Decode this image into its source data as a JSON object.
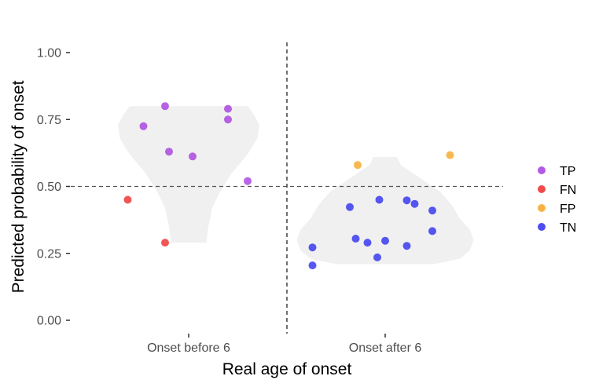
{
  "chart_data": {
    "type": "scatter",
    "subtype": "violin-with-jittered-points",
    "title": "",
    "xlabel": "Real age of onset",
    "ylabel": "Predicted probability of onset",
    "categories": [
      "Onset before 6",
      "Onset after 6"
    ],
    "ylim": [
      -0.05,
      1.05
    ],
    "yticks": [
      0.0,
      0.25,
      0.5,
      0.75,
      1.0
    ],
    "ytick_labels": [
      "0.00",
      "0.25",
      "0.50",
      "0.75",
      "1.00"
    ],
    "grid": false,
    "reference_lines": {
      "horizontal_y": 0.5,
      "vertical_between_categories": true
    },
    "legend": {
      "placement": "right",
      "entries": [
        {
          "label": "TP",
          "color": "#a63ddf"
        },
        {
          "label": "FN",
          "color": "#ee2c2c"
        },
        {
          "label": "FP",
          "color": "#f5a623"
        },
        {
          "label": "TN",
          "color": "#2e2ef0"
        }
      ]
    },
    "violin_color": "#f0f0f0",
    "violins": [
      {
        "category": "Onset before 6",
        "profile": [
          [
            0.29,
            0.09
          ],
          [
            0.35,
            0.1
          ],
          [
            0.42,
            0.12
          ],
          [
            0.48,
            0.16
          ],
          [
            0.55,
            0.22
          ],
          [
            0.62,
            0.3
          ],
          [
            0.68,
            0.35
          ],
          [
            0.73,
            0.36
          ],
          [
            0.77,
            0.33
          ],
          [
            0.8,
            0.3
          ]
        ]
      },
      {
        "category": "Onset after 6",
        "profile": [
          [
            0.21,
            0.25
          ],
          [
            0.23,
            0.38
          ],
          [
            0.26,
            0.43
          ],
          [
            0.3,
            0.45
          ],
          [
            0.34,
            0.43
          ],
          [
            0.38,
            0.38
          ],
          [
            0.43,
            0.34
          ],
          [
            0.48,
            0.28
          ],
          [
            0.53,
            0.18
          ],
          [
            0.58,
            0.08
          ],
          [
            0.61,
            0.06
          ]
        ]
      }
    ],
    "series": [
      {
        "name": "TP",
        "color": "#a63ddf",
        "points": [
          {
            "x": "Onset before 6",
            "jitter": -0.23,
            "y": 0.725
          },
          {
            "x": "Onset before 6",
            "jitter": -0.12,
            "y": 0.8
          },
          {
            "x": "Onset before 6",
            "jitter": -0.1,
            "y": 0.63
          },
          {
            "x": "Onset before 6",
            "jitter": 0.02,
            "y": 0.612
          },
          {
            "x": "Onset before 6",
            "jitter": 0.2,
            "y": 0.79
          },
          {
            "x": "Onset before 6",
            "jitter": 0.2,
            "y": 0.75
          },
          {
            "x": "Onset before 6",
            "jitter": 0.3,
            "y": 0.52
          }
        ]
      },
      {
        "name": "FN",
        "color": "#ee2c2c",
        "points": [
          {
            "x": "Onset before 6",
            "jitter": -0.31,
            "y": 0.45
          },
          {
            "x": "Onset before 6",
            "jitter": -0.12,
            "y": 0.29
          }
        ]
      },
      {
        "name": "FP",
        "color": "#f5a623",
        "points": [
          {
            "x": "Onset after 6",
            "jitter": -0.14,
            "y": 0.58
          },
          {
            "x": "Onset after 6",
            "jitter": 0.33,
            "y": 0.617
          }
        ]
      },
      {
        "name": "TN",
        "color": "#2e2ef0",
        "points": [
          {
            "x": "Onset after 6",
            "jitter": -0.37,
            "y": 0.205
          },
          {
            "x": "Onset after 6",
            "jitter": -0.37,
            "y": 0.272
          },
          {
            "x": "Onset after 6",
            "jitter": -0.18,
            "y": 0.423
          },
          {
            "x": "Onset after 6",
            "jitter": -0.15,
            "y": 0.305
          },
          {
            "x": "Onset after 6",
            "jitter": -0.09,
            "y": 0.29
          },
          {
            "x": "Onset after 6",
            "jitter": -0.04,
            "y": 0.235
          },
          {
            "x": "Onset after 6",
            "jitter": -0.03,
            "y": 0.45
          },
          {
            "x": "Onset after 6",
            "jitter": 0.0,
            "y": 0.297
          },
          {
            "x": "Onset after 6",
            "jitter": 0.11,
            "y": 0.278
          },
          {
            "x": "Onset after 6",
            "jitter": 0.11,
            "y": 0.448
          },
          {
            "x": "Onset after 6",
            "jitter": 0.15,
            "y": 0.435
          },
          {
            "x": "Onset after 6",
            "jitter": 0.24,
            "y": 0.41
          },
          {
            "x": "Onset after 6",
            "jitter": 0.24,
            "y": 0.333
          }
        ]
      }
    ]
  }
}
